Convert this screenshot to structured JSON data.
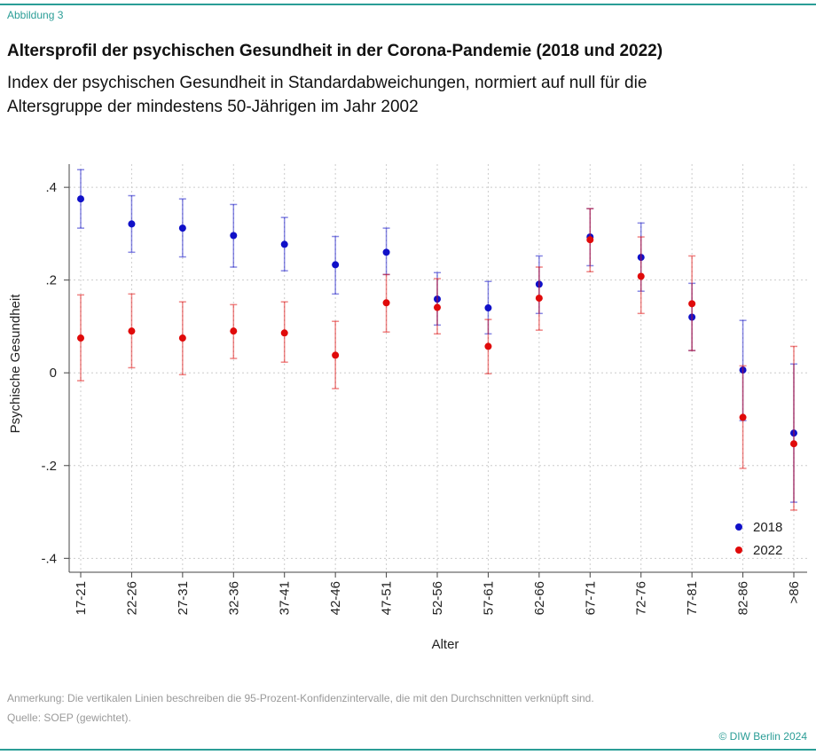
{
  "chart_data": {
    "type": "errorbar",
    "figure_label": "Abbildung 3",
    "title": "Altersprofil der psychischen Gesundheit in der Corona-Pandemie (2018 und 2022)",
    "subtitle": "Index der psychischen Gesundheit in Standardabweichungen, normiert auf null für die Altersgruppe der mindestens 50-Jährigen im Jahr 2002",
    "y_label": "Psychische Gesundheit",
    "x_label": "Alter",
    "note": "Anmerkung: Die vertikalen Linien beschreiben die 95-Prozent-Konfidenzintervalle, die mit den Durchschnitten verknüpft sind.",
    "source": "Quelle: SOEP (gewichtet).",
    "copyright": "© DIW Berlin 2024",
    "categories": [
      "17-21",
      "22-26",
      "27-31",
      "32-36",
      "37-41",
      "42-46",
      "47-51",
      "52-56",
      "57-61",
      "62-66",
      "67-71",
      "72-76",
      "77-81",
      "82-86",
      ">86"
    ],
    "series": [
      {
        "name": "2018",
        "color": "#1010c8",
        "values": [
          0.375,
          0.321,
          0.312,
          0.296,
          0.277,
          0.233,
          0.26,
          0.159,
          0.14,
          0.191,
          0.293,
          0.249,
          0.12,
          0.006,
          -0.13
        ],
        "lower": [
          0.312,
          0.26,
          0.25,
          0.228,
          0.22,
          0.17,
          0.212,
          0.103,
          0.084,
          0.128,
          0.231,
          0.176,
          0.048,
          -0.103,
          -0.279
        ],
        "upper": [
          0.438,
          0.382,
          0.375,
          0.363,
          0.335,
          0.294,
          0.312,
          0.216,
          0.197,
          0.252,
          0.354,
          0.323,
          0.193,
          0.113,
          0.019
        ]
      },
      {
        "name": "2022",
        "color": "#e00a0a",
        "values": [
          0.075,
          0.09,
          0.075,
          0.09,
          0.086,
          0.038,
          0.151,
          0.141,
          0.057,
          0.161,
          0.287,
          0.208,
          0.149,
          -0.096,
          -0.153
        ],
        "lower": [
          -0.017,
          0.011,
          -0.004,
          0.031,
          0.023,
          -0.034,
          0.088,
          0.084,
          -0.002,
          0.092,
          0.218,
          0.128,
          0.048,
          -0.206,
          -0.296
        ],
        "upper": [
          0.168,
          0.17,
          0.153,
          0.147,
          0.153,
          0.111,
          0.212,
          0.203,
          0.115,
          0.228,
          0.354,
          0.293,
          0.252,
          0.015,
          0.057
        ]
      }
    ],
    "ylim": [
      -0.43,
      0.45
    ],
    "yticks": [
      {
        "value": -0.4,
        "label": "-.4"
      },
      {
        "value": -0.2,
        "label": "-.2"
      },
      0,
      {
        "value": 0.2,
        "label": ".2"
      },
      {
        "value": 0.4,
        "label": ".4"
      }
    ],
    "grid": true,
    "legend": "lower right"
  }
}
